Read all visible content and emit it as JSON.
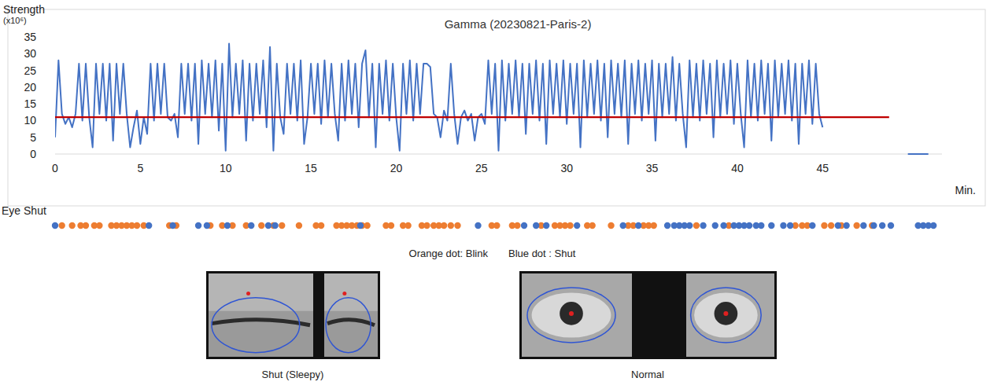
{
  "chart_data": [
    {
      "type": "line",
      "title": "Gamma (20230821-Paris-2)",
      "ylabel": "Strength",
      "ylabel_unit": "(x10⁶)",
      "xlabel": "Min.",
      "xlim": [
        0,
        52
      ],
      "xticks": [
        0,
        5,
        10,
        15,
        20,
        25,
        30,
        35,
        40,
        45
      ],
      "ylim": [
        0,
        35
      ],
      "yticks": [
        0,
        5,
        10,
        15,
        20,
        25,
        30,
        35
      ],
      "grid": false,
      "series": [
        {
          "color": "#4472c4",
          "line_style": "solid",
          "x": [
            0,
            0.2,
            0.4,
            0.6,
            0.8,
            1,
            1.2,
            1.4,
            1.6,
            1.8,
            2,
            2.2,
            2.4,
            2.6,
            2.8,
            3,
            3.2,
            3.4,
            3.6,
            3.8,
            4,
            4.2,
            4.4,
            4.6,
            4.8,
            5,
            5.2,
            5.4,
            5.6,
            5.8,
            6,
            6.2,
            6.4,
            6.6,
            6.8,
            7,
            7.2,
            7.4,
            7.6,
            7.8,
            8,
            8.2,
            8.4,
            8.6,
            8.8,
            9,
            9.2,
            9.4,
            9.6,
            9.8,
            10,
            10.2,
            10.4,
            10.6,
            10.8,
            11,
            11.2,
            11.4,
            11.6,
            11.8,
            12,
            12.2,
            12.4,
            12.6,
            12.8,
            13,
            13.2,
            13.4,
            13.6,
            13.8,
            14,
            14.2,
            14.4,
            14.6,
            14.8,
            15,
            15.2,
            15.4,
            15.6,
            15.8,
            16,
            16.2,
            16.4,
            16.6,
            16.8,
            17,
            17.2,
            17.4,
            17.6,
            17.8,
            18,
            18.2,
            18.4,
            18.6,
            18.8,
            19,
            19.2,
            19.4,
            19.6,
            19.8,
            20,
            20.2,
            20.4,
            20.6,
            20.8,
            21,
            21.2,
            21.4,
            21.6,
            21.8,
            22,
            22.2,
            22.4,
            22.6,
            22.8,
            23,
            23.2,
            23.4,
            23.6,
            23.8,
            24,
            24.2,
            24.4,
            24.6,
            24.8,
            25,
            25.2,
            25.4,
            25.6,
            25.8,
            26,
            26.2,
            26.4,
            26.6,
            26.8,
            27,
            27.2,
            27.4,
            27.6,
            27.8,
            28,
            28.2,
            28.4,
            28.6,
            28.8,
            29,
            29.2,
            29.4,
            29.6,
            29.8,
            30,
            30.2,
            30.4,
            30.6,
            30.8,
            31,
            31.2,
            31.4,
            31.6,
            31.8,
            32,
            32.2,
            32.4,
            32.6,
            32.8,
            33,
            33.2,
            33.4,
            33.6,
            33.8,
            34,
            34.2,
            34.4,
            34.6,
            34.8,
            35,
            35.2,
            35.4,
            35.6,
            35.8,
            36,
            36.2,
            36.4,
            36.6,
            36.8,
            37,
            37.2,
            37.4,
            37.6,
            37.8,
            38,
            38.2,
            38.4,
            38.6,
            38.8,
            39,
            39.2,
            39.4,
            39.6,
            39.8,
            40,
            40.2,
            40.4,
            40.6,
            40.8,
            41,
            41.2,
            41.4,
            41.6,
            41.8,
            42,
            42.2,
            42.4,
            42.6,
            42.8,
            43,
            43.2,
            43.4,
            43.6,
            43.8,
            44,
            44.2,
            44.4,
            44.6,
            44.8,
            45,
            47,
            50,
            51.2
          ],
          "values": [
            5,
            28,
            12,
            9,
            11,
            8,
            12,
            27,
            10,
            27,
            11,
            2,
            27,
            12,
            27,
            10,
            27,
            4,
            27,
            12,
            27,
            12,
            2,
            8,
            13,
            3,
            11,
            6,
            27,
            10,
            27,
            12,
            27,
            11,
            10,
            12,
            5,
            27,
            12,
            27,
            10,
            27,
            3,
            28,
            12,
            27,
            11,
            28,
            7,
            27,
            1,
            33,
            11,
            27,
            12,
            28,
            4,
            27,
            10,
            27,
            12,
            28,
            8,
            32,
            1,
            27,
            11,
            6,
            27,
            12,
            27,
            10,
            28,
            3,
            11,
            27,
            12,
            27,
            9,
            28,
            11,
            27,
            12,
            4,
            27,
            10,
            28,
            12,
            27,
            8,
            27,
            31,
            11,
            27,
            2,
            27,
            12,
            28,
            10,
            27,
            11,
            1,
            27,
            12,
            28,
            10,
            27,
            12,
            27,
            27,
            26,
            12,
            11,
            5,
            13,
            10,
            27,
            12,
            3,
            11,
            13,
            10,
            12,
            4,
            11,
            12,
            9,
            28,
            12,
            27,
            1,
            28,
            10,
            27,
            12,
            28,
            11,
            27,
            6,
            27,
            12,
            28,
            10,
            27,
            3,
            28,
            12,
            27,
            11,
            28,
            9,
            27,
            12,
            27,
            2,
            28,
            11,
            27,
            12,
            28,
            10,
            27,
            5,
            28,
            12,
            27,
            11,
            28,
            3,
            27,
            12,
            28,
            10,
            27,
            12,
            28,
            4,
            27,
            11,
            27,
            12,
            29,
            10,
            27,
            12,
            2,
            28,
            11,
            27,
            10,
            28,
            12,
            27,
            5,
            28,
            11,
            27,
            12,
            28,
            9,
            27,
            12,
            2,
            28,
            11,
            27,
            10,
            28,
            12,
            27,
            4,
            28,
            11,
            27,
            12,
            28,
            10,
            27,
            3,
            27,
            12,
            28,
            9,
            27,
            12,
            8,
            null,
            0,
            0
          ]
        },
        {
          "color": "#c00000",
          "line_style": "solid",
          "x": [
            0,
            48.9
          ],
          "values": [
            11,
            11
          ]
        }
      ]
    },
    {
      "type": "scatter",
      "ylabel": "Eye Shut",
      "xlim": [
        0,
        52
      ],
      "tick_labels": false,
      "legend": "bottom",
      "series": [
        {
          "name": "Orange dot: Blink",
          "color": "#ed7d31",
          "marker": "circle",
          "x": [
            0.4,
            1.0,
            1.5,
            1.8,
            2.3,
            2.6,
            3.3,
            3.6,
            3.9,
            4.2,
            4.5,
            4.8,
            5.2,
            6.7,
            7.1,
            9.1,
            9.8,
            10.4,
            11.2,
            12.1,
            12.8,
            13.3,
            14.3,
            15.3,
            15.6,
            16.5,
            16.8,
            17.1,
            17.4,
            17.7,
            18.0,
            18.3,
            19.4,
            19.7,
            20.4,
            20.7,
            21.5,
            21.8,
            22.2,
            22.5,
            22.8,
            23.2,
            23.6,
            25.6,
            25.9,
            26.8,
            27.1,
            28.5,
            29.3,
            29.6,
            29.9,
            30.2,
            31.2,
            31.5,
            32.6,
            33.6,
            33.9,
            34.5,
            34.8,
            35.1,
            37.6,
            39.5,
            43.4,
            43.8,
            44.1,
            45.1,
            45.5,
            46.1,
            47.0,
            47.9
          ]
        },
        {
          "name": "Blue dot : Shut",
          "color": "#4472c4",
          "marker": "circle",
          "x": [
            0.0,
            5.5,
            6.9,
            8.4,
            8.9,
            10.1,
            11.5,
            12.5,
            12.9,
            17.9,
            24.8,
            27.5,
            28.2,
            28.8,
            30.6,
            33.3,
            34.2,
            35.9,
            36.3,
            36.6,
            36.9,
            37.2,
            38.0,
            38.7,
            39.2,
            39.8,
            40.1,
            40.4,
            40.7,
            41.1,
            41.4,
            42.0,
            42.7,
            43.1,
            44.4,
            45.9,
            46.4,
            47.4,
            48.0,
            48.5,
            49.0,
            50.6,
            50.9,
            51.2,
            51.5
          ]
        }
      ]
    }
  ],
  "images": [
    {
      "caption": "Shut (Sleepy)"
    },
    {
      "caption": "Normal"
    }
  ]
}
